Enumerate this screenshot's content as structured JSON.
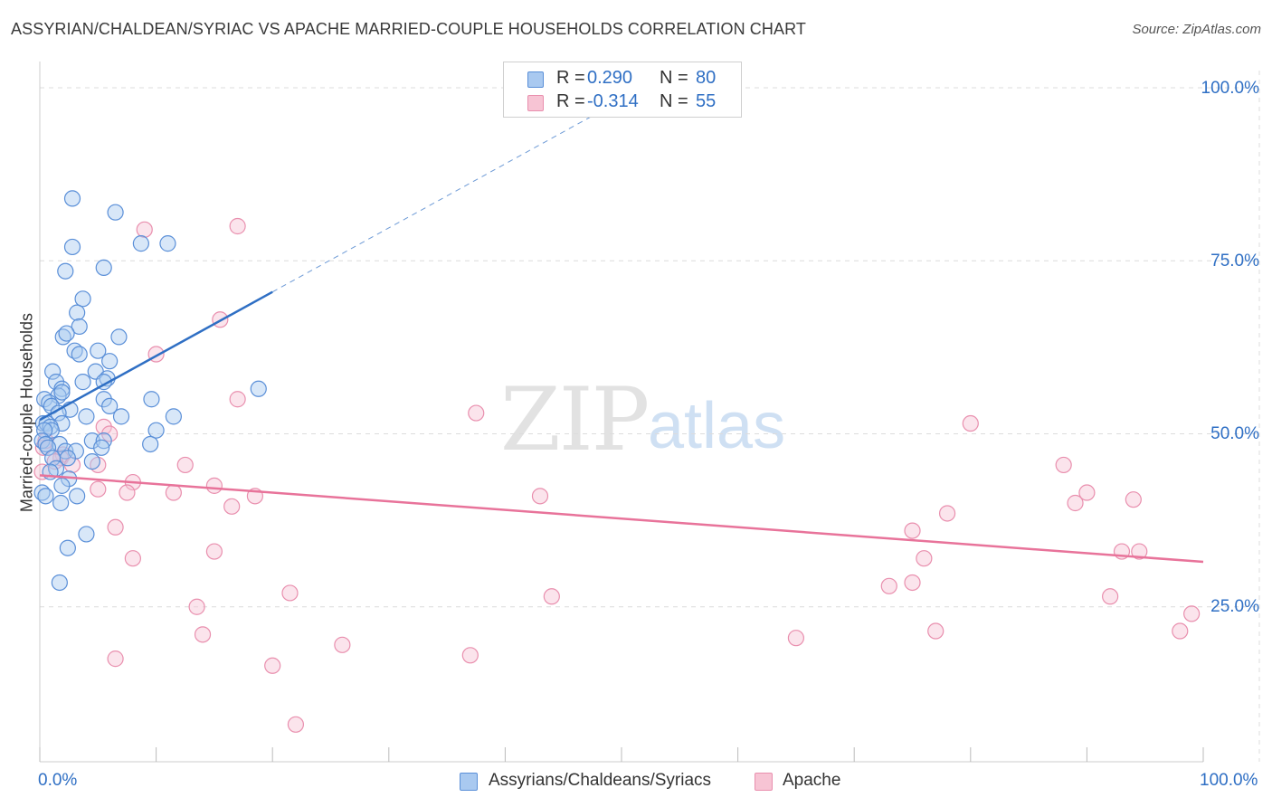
{
  "header": {
    "title": "ASSYRIAN/CHALDEAN/SYRIAC VS APACHE MARRIED-COUPLE HOUSEHOLDS CORRELATION CHART",
    "source": "Source: ZipAtlas.com"
  },
  "watermark": {
    "zip": "ZIP",
    "atlas": "atlas"
  },
  "legend": {
    "r_label": "R =",
    "n_label": "N =",
    "rows": [
      {
        "r": "0.290",
        "n": "80",
        "color": "#6fa3e8"
      },
      {
        "r": "-0.314",
        "n": "55",
        "color": "#f2a3bd"
      }
    ]
  },
  "bottom_legend": {
    "series1": "Assyrians/Chaldeans/Syriacs",
    "series2": "Apache"
  },
  "axes": {
    "ylabel": "Married-couple Households",
    "yticks": [
      "100.0%",
      "75.0%",
      "50.0%",
      "25.0%"
    ],
    "xtick_left": "0.0%",
    "xtick_right": "100.0%"
  },
  "colors": {
    "blue_line": "#2f6fc4",
    "blue_fill": "#a9c9f0",
    "blue_stroke": "#5a8fd8",
    "pink_line": "#e8739a",
    "pink_fill": "#f7c4d4",
    "pink_stroke": "#e98fae",
    "grid": "#dcdcdc"
  },
  "chart_data": {
    "type": "scatter",
    "title": "ASSYRIAN/CHALDEAN/SYRIAC VS APACHE MARRIED-COUPLE HOUSEHOLDS CORRELATION CHART",
    "xlabel": "",
    "ylabel": "Married-couple Households",
    "xlim": [
      0,
      100
    ],
    "ylim": [
      0,
      100
    ],
    "grid": true,
    "series": [
      {
        "name": "Assyrians/Chaldeans/Syriacs",
        "R": 0.29,
        "N": 80,
        "trend": {
          "x0": 0,
          "y0": 52,
          "x1": 20,
          "y1": 70.5,
          "dashed_to_x": 50
        },
        "points": [
          [
            2.8,
            84
          ],
          [
            6.5,
            82
          ],
          [
            2.8,
            77
          ],
          [
            11,
            77.5
          ],
          [
            8.7,
            77.5
          ],
          [
            2.2,
            73.5
          ],
          [
            5.5,
            74
          ],
          [
            3.7,
            69.5
          ],
          [
            3.2,
            67.5
          ],
          [
            3.4,
            65.5
          ],
          [
            6.8,
            64
          ],
          [
            2.0,
            64
          ],
          [
            2.3,
            64.5
          ],
          [
            5,
            62
          ],
          [
            3.0,
            62
          ],
          [
            3.4,
            61.5
          ],
          [
            6,
            60.5
          ],
          [
            4.8,
            59
          ],
          [
            5.8,
            58
          ],
          [
            1.1,
            59
          ],
          [
            3.7,
            57.5
          ],
          [
            5.5,
            57.5
          ],
          [
            1.4,
            57.5
          ],
          [
            1.9,
            56.5
          ],
          [
            1.6,
            55.5
          ],
          [
            1.9,
            56
          ],
          [
            5.5,
            55
          ],
          [
            9.6,
            55
          ],
          [
            18.8,
            56.5
          ],
          [
            0.4,
            55
          ],
          [
            0.8,
            54.5
          ],
          [
            1.0,
            54
          ],
          [
            2.6,
            53.5
          ],
          [
            6,
            54
          ],
          [
            1.6,
            53
          ],
          [
            7,
            52.5
          ],
          [
            11.5,
            52.5
          ],
          [
            4,
            52.5
          ],
          [
            0.3,
            51.5
          ],
          [
            0.6,
            51.5
          ],
          [
            1.9,
            51.5
          ],
          [
            0.9,
            51
          ],
          [
            1.0,
            50.5
          ],
          [
            0.4,
            50.5
          ],
          [
            10,
            50.5
          ],
          [
            0.2,
            49
          ],
          [
            0.5,
            48.5
          ],
          [
            1.7,
            48.5
          ],
          [
            4.5,
            49
          ],
          [
            5.5,
            49
          ],
          [
            9.5,
            48.5
          ],
          [
            0.7,
            48
          ],
          [
            2.2,
            47.5
          ],
          [
            3.1,
            47.5
          ],
          [
            5.3,
            48
          ],
          [
            1.1,
            46.5
          ],
          [
            2.4,
            46.5
          ],
          [
            4.5,
            46
          ],
          [
            1.4,
            45
          ],
          [
            0.9,
            44.5
          ],
          [
            2.5,
            43.5
          ],
          [
            1.9,
            42.5
          ],
          [
            0.2,
            41.5
          ],
          [
            0.5,
            41
          ],
          [
            3.2,
            41
          ],
          [
            1.8,
            40
          ],
          [
            4,
            35.5
          ],
          [
            2.4,
            33.5
          ],
          [
            1.7,
            28.5
          ]
        ]
      },
      {
        "name": "Apache",
        "R": -0.314,
        "N": 55,
        "trend": {
          "x0": 0,
          "y0": 44,
          "x1": 100,
          "y1": 31.5
        },
        "points": [
          [
            17,
            80
          ],
          [
            9,
            79.5
          ],
          [
            15.5,
            66.5
          ],
          [
            10,
            61.5
          ],
          [
            17,
            55
          ],
          [
            37.5,
            53
          ],
          [
            0.3,
            48
          ],
          [
            5.5,
            51
          ],
          [
            6,
            50
          ],
          [
            0.5,
            49
          ],
          [
            2,
            47
          ],
          [
            1.8,
            46.5
          ],
          [
            1.3,
            46
          ],
          [
            2.8,
            45.5
          ],
          [
            5,
            45.5
          ],
          [
            12.5,
            45.5
          ],
          [
            0.2,
            44.5
          ],
          [
            8,
            43
          ],
          [
            15,
            42.5
          ],
          [
            5,
            42
          ],
          [
            7.5,
            41.5
          ],
          [
            11.5,
            41.5
          ],
          [
            18.5,
            41
          ],
          [
            43,
            41
          ],
          [
            16.5,
            39.5
          ],
          [
            6.5,
            36.5
          ],
          [
            15,
            33
          ],
          [
            8,
            32
          ],
          [
            21.5,
            27
          ],
          [
            44,
            26.5
          ],
          [
            13.5,
            25
          ],
          [
            14,
            21
          ],
          [
            26,
            19.5
          ],
          [
            37,
            18
          ],
          [
            6.5,
            17.5
          ],
          [
            20,
            16.5
          ],
          [
            65,
            20.5
          ],
          [
            80,
            51.5
          ],
          [
            75,
            36
          ],
          [
            76,
            32
          ],
          [
            78,
            38.5
          ],
          [
            88,
            45.5
          ],
          [
            90,
            41.5
          ],
          [
            89,
            40
          ],
          [
            94,
            40.5
          ],
          [
            93,
            33
          ],
          [
            94.5,
            33
          ],
          [
            73,
            28
          ],
          [
            75,
            28.5
          ],
          [
            77,
            21.5
          ],
          [
            92,
            26.5
          ],
          [
            99,
            24
          ],
          [
            98,
            21.5
          ],
          [
            22,
            8
          ]
        ]
      }
    ]
  }
}
